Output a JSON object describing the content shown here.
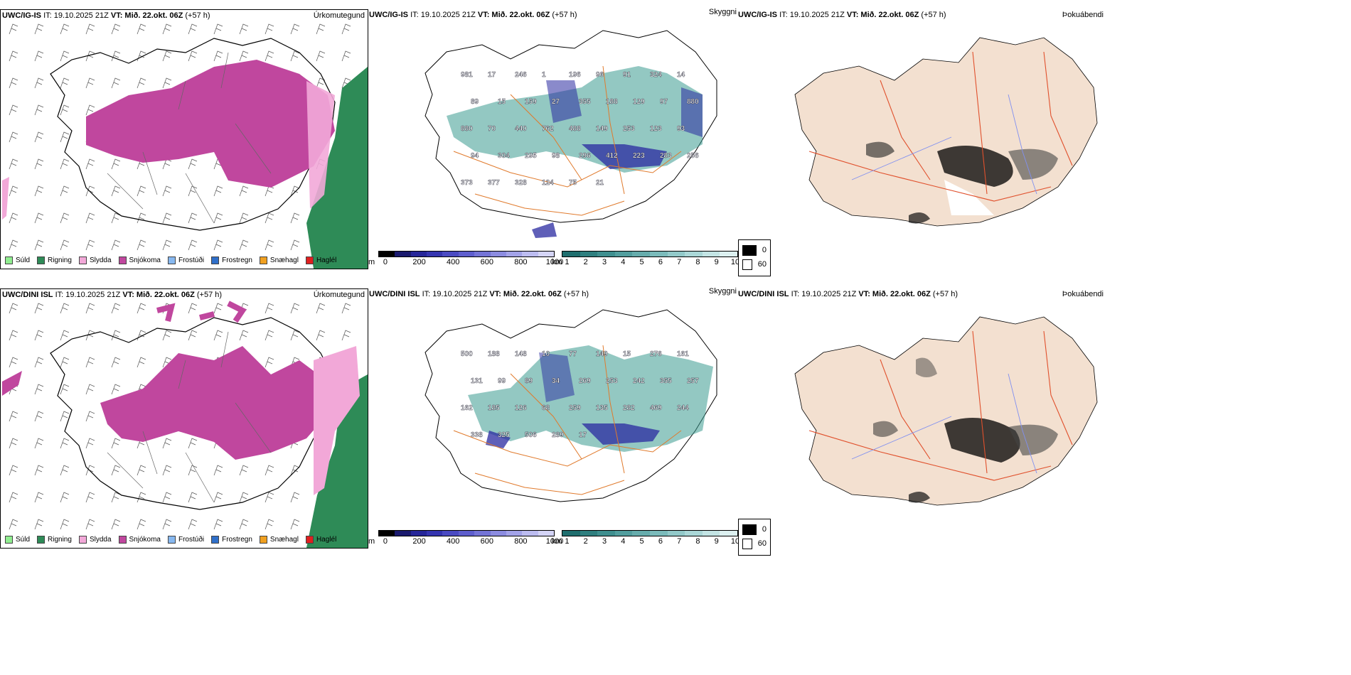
{
  "rows": [
    {
      "model": "UWC/IG-IS",
      "it": "IT: 19.10.2025 21Z",
      "vt_label": "VT: Mið. 22.okt. 06Z",
      "lead": "(+57 h)",
      "titles": {
        "precip": "Úrkomutegund",
        "vis": "Skyggni",
        "fog": "Þokuábendi"
      },
      "vis_labels": [
        "981",
        "17",
        "246",
        "1",
        "196",
        "96",
        "91",
        "324",
        "14",
        "89",
        "15",
        "159",
        "27",
        "355",
        "188",
        "129",
        "97",
        "880",
        "880",
        "70",
        "440",
        "762",
        "488",
        "149",
        "253",
        "123",
        "93",
        "94",
        "304",
        "295",
        "98",
        "296",
        "412",
        "223",
        "283",
        "256",
        "373",
        "377",
        "328",
        "124",
        "75",
        "21"
      ]
    },
    {
      "model": "UWC/DINI ISL",
      "it": "IT: 19.10.2025 21Z",
      "vt_label": "VT: Mið. 22.okt. 06Z",
      "lead": "(+57 h)",
      "titles": {
        "precip": "Úrkomutegund",
        "vis": "Skyggni",
        "fog": "Þokuábendi"
      },
      "vis_labels": [
        "500",
        "188",
        "148",
        "10",
        "77",
        "149",
        "15",
        "276",
        "161",
        "131",
        "99",
        "89",
        "34",
        "269",
        "253",
        "242",
        "355",
        "257",
        "162",
        "185",
        "126",
        "68",
        "259",
        "135",
        "282",
        "469",
        "244",
        "338",
        "325",
        "506",
        "289",
        "17"
      ]
    }
  ],
  "precip_legend": [
    {
      "label": "Súld",
      "color": "#90ee90"
    },
    {
      "label": "Rigning",
      "color": "#2e8b57"
    },
    {
      "label": "Slydda",
      "color": "#f2a8d8"
    },
    {
      "label": "Snjókoma",
      "color": "#c0479e"
    },
    {
      "label": "Frostúði",
      "color": "#87b8f0"
    },
    {
      "label": "Frostregn",
      "color": "#2f6fc9"
    },
    {
      "label": "Snæhagl",
      "color": "#f0a020"
    },
    {
      "label": "Haglél",
      "color": "#e02020"
    }
  ],
  "ceiling_bar": {
    "unit": "m",
    "ticks": [
      "0",
      "200",
      "400",
      "600",
      "800",
      "1000"
    ],
    "colors": [
      "#000000",
      "#1a1a6e",
      "#262699",
      "#3535b0",
      "#4a4ac2",
      "#5e5ecd",
      "#7474d6",
      "#8c8ce0",
      "#a3a3e8",
      "#bcbcf0",
      "#d4d4f6"
    ]
  },
  "vis_bar": {
    "unit": "km",
    "ticks": [
      "1",
      "2",
      "3",
      "4",
      "5",
      "6",
      "7",
      "8",
      "9",
      "10"
    ],
    "colors": [
      "#1f6e6e",
      "#2f7f7f",
      "#3f8f8f",
      "#529e9e",
      "#66acac",
      "#7bbbbb",
      "#92c9c9",
      "#aad7d7",
      "#c3e4e4",
      "#dcf0f0"
    ]
  },
  "fog_legend": {
    "values": [
      "0",
      "60"
    ],
    "colors": [
      "#000000",
      "#ffffff"
    ]
  },
  "colors": {
    "snow": "#c0479e",
    "rain": "#2e8b57",
    "sleet": "#f2a8d8",
    "vis_teal": "#3a9a8f",
    "vis_blue": "#2a2aa0",
    "road": "#e07a2c",
    "land": "#f3e0d0",
    "river": "#8090f0"
  }
}
